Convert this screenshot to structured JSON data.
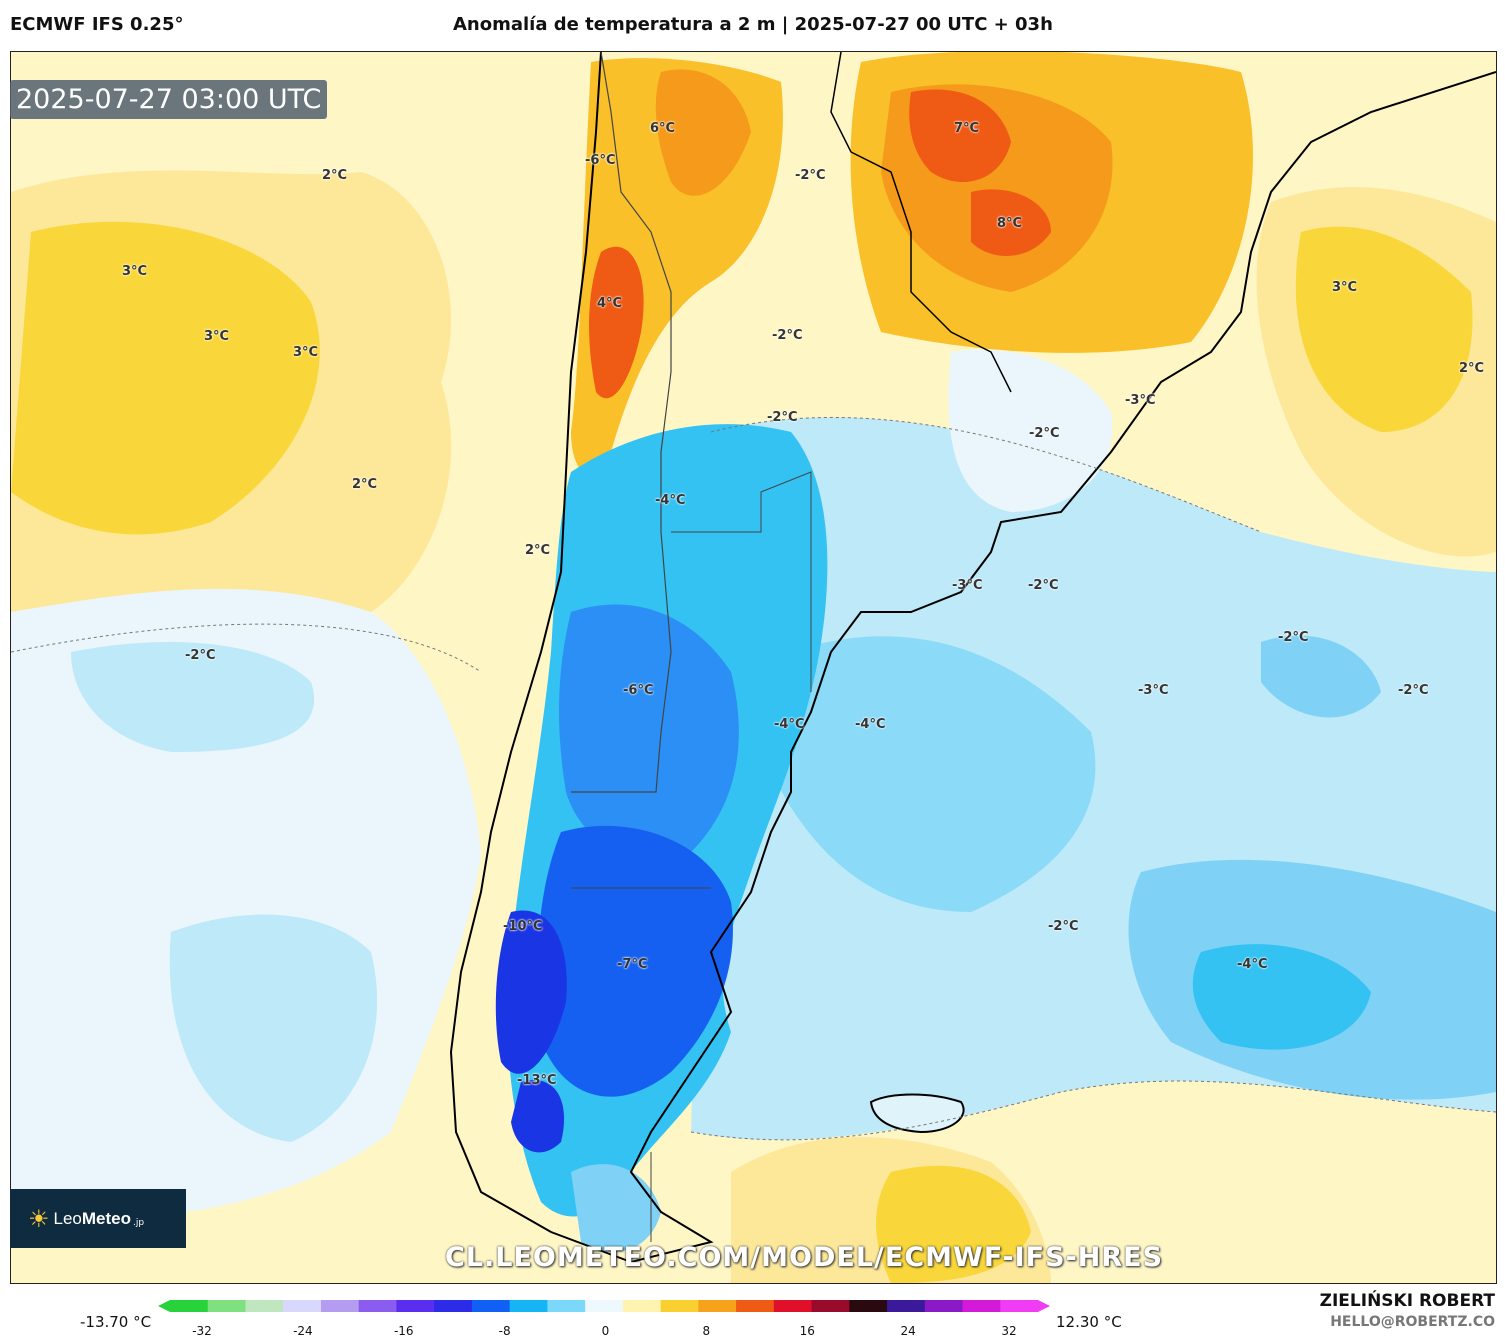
{
  "header": {
    "model": "ECMWF IFS 0.25°",
    "title": "Anomalía de temperatura a 2 m | 2025-07-27 00 UTC + 03h"
  },
  "map": {
    "timestamp": "2025-07-27 03:00 UTC",
    "watermark": "CL.LEOMETEO.COM/MODEL/ECMWF-IFS-HRES",
    "labels": [
      "2°C",
      "3°C",
      "3°C",
      "3°C",
      "2°C",
      "6°C",
      "-6°C",
      "4°C",
      "-2°C",
      "-2°C",
      "-2°C",
      "7°C",
      "8°C",
      "3°C",
      "2°C",
      "-3°C",
      "-2°C",
      "-4°C",
      "2°C",
      "-2°C",
      "-3°C",
      "-2°C",
      "-6°C",
      "-4°C",
      "-4°C",
      "-2°C",
      "-3°C",
      "-2°C",
      "-10°C",
      "-7°C",
      "-2°C",
      "-4°C",
      "-13°C"
    ]
  },
  "logo": {
    "sun_icon": "☀",
    "brand_light": "Leo",
    "brand_bold": "Meteo",
    "tld": ".jp"
  },
  "colorbar": {
    "min_label": "-13.70 °C",
    "max_label": "12.30 °C",
    "ticks": [
      "-32",
      "-24",
      "-16",
      "-8",
      "0",
      "8",
      "16",
      "24",
      "32"
    ],
    "colors": [
      "#27d23b",
      "#7ee07e",
      "#bfe6bf",
      "#d8d8ff",
      "#b49cf0",
      "#8a5cf0",
      "#5a2ef0",
      "#2b2be8",
      "#1060f5",
      "#14b4f5",
      "#7ad8fb",
      "#eef8ff",
      "#fff3b0",
      "#f9d030",
      "#f6a21a",
      "#ef5a14",
      "#e0102a",
      "#9a0a2a",
      "#2a0a10",
      "#3a1a9a",
      "#8a1ac8",
      "#d21ad8",
      "#f03cf4"
    ]
  },
  "footer": {
    "author": "ZIELIŃSKI ROBERT",
    "contact": "HELLO@ROBERTZ.CO"
  }
}
